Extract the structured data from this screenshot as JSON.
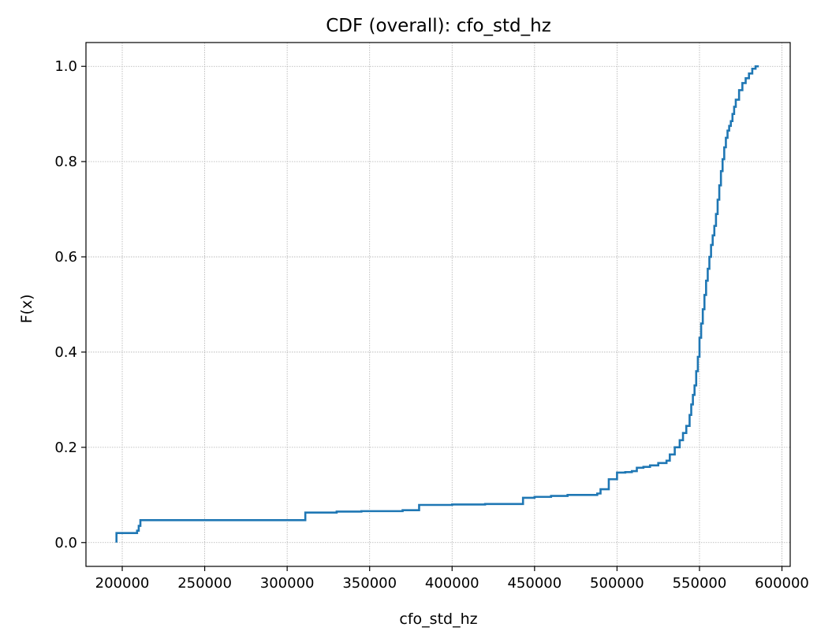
{
  "chart_data": {
    "type": "line",
    "title": "CDF (overall): cfo_std_hz",
    "xlabel": "cfo_std_hz",
    "ylabel": "F(x)",
    "xlim": [
      178000,
      605000
    ],
    "ylim": [
      -0.05,
      1.05
    ],
    "xticks": [
      200000,
      250000,
      300000,
      350000,
      400000,
      450000,
      500000,
      550000,
      600000
    ],
    "xtick_labels": [
      "200000",
      "250000",
      "300000",
      "350000",
      "400000",
      "450000",
      "500000",
      "550000",
      "600000"
    ],
    "yticks": [
      0.0,
      0.2,
      0.4,
      0.6,
      0.8,
      1.0
    ],
    "ytick_labels": [
      "0.0",
      "0.2",
      "0.4",
      "0.6",
      "0.8",
      "1.0"
    ],
    "grid": true,
    "colors": {
      "line": "#1f77b4"
    },
    "series": [
      {
        "step": true,
        "x": [
          196500,
          196500,
          209000,
          210000,
          211000,
          311000,
          330000,
          345000,
          370000,
          380000,
          400000,
          420000,
          443000,
          450000,
          460000,
          470000,
          488000,
          490000,
          495000,
          500000,
          505000,
          509000,
          512000,
          516000,
          520000,
          525000,
          530000,
          532000,
          535000,
          538000,
          540000,
          542000,
          544000,
          545000,
          546000,
          547000,
          548000,
          549000,
          550000,
          551000,
          552000,
          553000,
          554000,
          555000,
          556000,
          557000,
          558000,
          559000,
          560000,
          561000,
          562000,
          563000,
          564000,
          565000,
          566000,
          567000,
          568000,
          569000,
          570000,
          571000,
          572000,
          574000,
          576000,
          578000,
          580000,
          582000,
          584000,
          586000
        ],
        "y": [
          0.0,
          0.02,
          0.025,
          0.035,
          0.047,
          0.063,
          0.065,
          0.066,
          0.068,
          0.079,
          0.08,
          0.081,
          0.094,
          0.096,
          0.098,
          0.1,
          0.103,
          0.112,
          0.133,
          0.147,
          0.148,
          0.15,
          0.157,
          0.159,
          0.162,
          0.167,
          0.172,
          0.185,
          0.2,
          0.215,
          0.23,
          0.245,
          0.268,
          0.29,
          0.31,
          0.33,
          0.36,
          0.39,
          0.43,
          0.46,
          0.49,
          0.52,
          0.55,
          0.575,
          0.6,
          0.625,
          0.645,
          0.665,
          0.69,
          0.72,
          0.75,
          0.78,
          0.805,
          0.83,
          0.85,
          0.865,
          0.875,
          0.885,
          0.9,
          0.915,
          0.93,
          0.95,
          0.965,
          0.975,
          0.985,
          0.995,
          1.0,
          1.0
        ]
      }
    ]
  }
}
